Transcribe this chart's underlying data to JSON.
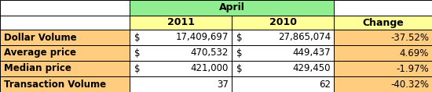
{
  "title": "April",
  "col_headers": [
    "2011",
    "2010",
    "Change"
  ],
  "row_labels": [
    "Dollar Volume",
    "Average price",
    "Median price",
    "Transaction Volume"
  ],
  "col1_dollar": [
    "$",
    "$",
    "$",
    ""
  ],
  "col2_dollar": [
    "$",
    "$",
    "$",
    ""
  ],
  "col1_values": [
    "17,409,697",
    "470,532",
    "421,000",
    "37"
  ],
  "col2_values": [
    "27,865,074",
    "449,437",
    "429,450",
    "62"
  ],
  "col3_values": [
    "-37.52%",
    "4.69%",
    "-1.97%",
    "-40.32%"
  ],
  "header_bg": "#90EE90",
  "subheader_bg": "#FFFF99",
  "row_bg": "#FFCC80",
  "border_color": "#000000",
  "text_color": "#000000",
  "fig_width": 5.5,
  "fig_height": 1.18
}
